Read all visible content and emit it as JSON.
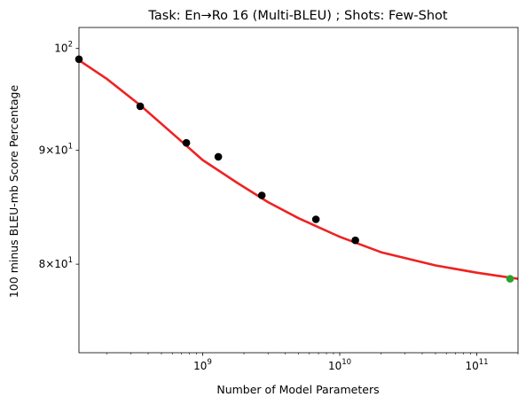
{
  "chart_data": {
    "type": "scatter",
    "title": "Task: En→Ro 16 (Multi-BLEU) ; Shots: Few-Shot",
    "xlabel": "Number of Model Parameters",
    "ylabel": "100 minus BLEU-mb Score Percentage",
    "x_scale": "log",
    "y_scale": "log",
    "xlim": [
      125000000.0,
      200000000000.0
    ],
    "ylim": [
      73.0,
      102.2
    ],
    "x_major_ticks": [
      {
        "value": 1000000000.0,
        "base": "10",
        "exp": "9"
      },
      {
        "value": 10000000000.0,
        "base": "10",
        "exp": "10"
      },
      {
        "value": 100000000000.0,
        "base": "10",
        "exp": "11"
      }
    ],
    "y_major_ticks": [
      {
        "value": 80,
        "mant": "8",
        "base": "10",
        "exp": "1"
      },
      {
        "value": 90,
        "mant": "9",
        "base": "10",
        "exp": "1"
      },
      {
        "value": 100,
        "mant": "",
        "base": "10",
        "exp": "2"
      }
    ],
    "grid": false,
    "legend": "none",
    "series": [
      {
        "role": "observed",
        "color": "#000000",
        "points": [
          {
            "x": 125000000.0,
            "y": 98.9
          },
          {
            "x": 350000000.0,
            "y": 94.2
          },
          {
            "x": 760000000.0,
            "y": 90.7
          },
          {
            "x": 1300000000.0,
            "y": 89.4
          },
          {
            "x": 2700000000.0,
            "y": 85.9
          },
          {
            "x": 6700000000.0,
            "y": 83.8
          },
          {
            "x": 13000000000.0,
            "y": 82.0
          }
        ]
      },
      {
        "role": "target",
        "color": "#2ca02c",
        "points": [
          {
            "x": 175000000000.0,
            "y": 78.8
          }
        ]
      },
      {
        "role": "fit",
        "type": "line",
        "color": "#ee2222",
        "points": [
          {
            "x": 125000000.0,
            "y": 98.8
          },
          {
            "x": 200000000.0,
            "y": 96.9
          },
          {
            "x": 350000000.0,
            "y": 94.3
          },
          {
            "x": 600000000.0,
            "y": 91.6
          },
          {
            "x": 1000000000.0,
            "y": 89.1
          },
          {
            "x": 1800000000.0,
            "y": 87.0
          },
          {
            "x": 3000000000.0,
            "y": 85.3
          },
          {
            "x": 5000000000.0,
            "y": 83.9
          },
          {
            "x": 10000000000.0,
            "y": 82.3
          },
          {
            "x": 20000000000.0,
            "y": 81.0
          },
          {
            "x": 50000000000.0,
            "y": 79.9
          },
          {
            "x": 100000000000.0,
            "y": 79.3
          },
          {
            "x": 200000000000.0,
            "y": 78.8
          }
        ]
      }
    ]
  }
}
